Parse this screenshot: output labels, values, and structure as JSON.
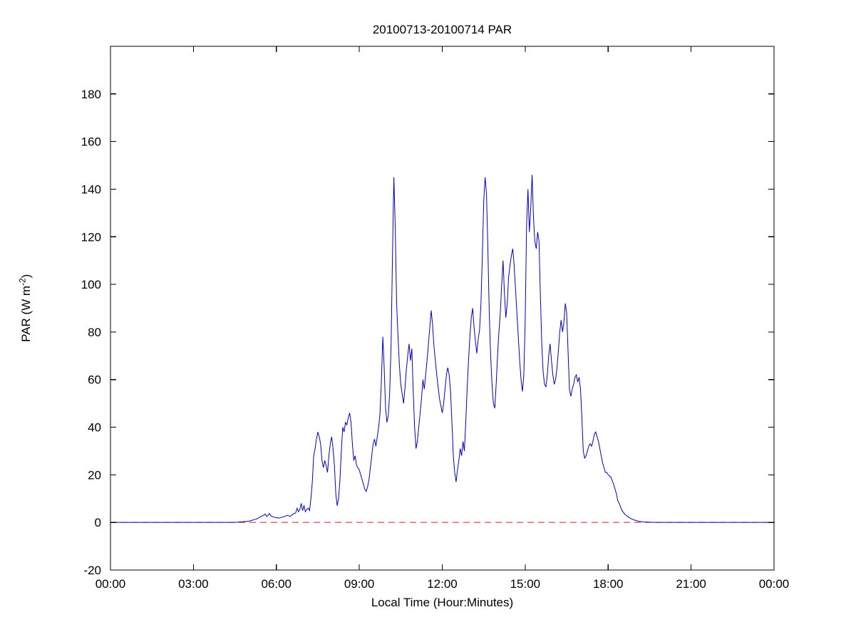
{
  "figure": {
    "background": "#ffffff",
    "axis_color": "#000000",
    "title": "20100713-20100714 PAR",
    "xlabel": "Local Time (Hour:Minutes)",
    "ylabel_base": "PAR (W m",
    "ylabel_sup": "-2",
    "ylabel_end": ")"
  },
  "chart_data": {
    "type": "line",
    "title": "20100713-20100714 PAR",
    "xlabel": "Local Time (Hour:Minutes)",
    "ylabel": "PAR (W m^-2)",
    "xlim": [
      0,
      24
    ],
    "ylim": [
      -20,
      200
    ],
    "grid": false,
    "legend": "none",
    "x_tick_values": [
      0,
      3,
      6,
      9,
      12,
      15,
      18,
      21,
      24
    ],
    "x_tick_labels": [
      "00:00",
      "03:00",
      "06:00",
      "09:00",
      "12:00",
      "15:00",
      "18:00",
      "21:00",
      "00:00"
    ],
    "y_tick_values": [
      -20,
      0,
      20,
      40,
      60,
      80,
      100,
      120,
      140,
      160,
      180
    ],
    "series": [
      {
        "name": "zero-reference-line",
        "color": "#cc2222",
        "style": "dashed",
        "points": [
          [
            0,
            0
          ],
          [
            24,
            0
          ]
        ]
      },
      {
        "name": "PAR",
        "color": "#0000cc",
        "style": "solid",
        "points": [
          [
            0,
            0
          ],
          [
            0.5,
            0
          ],
          [
            1,
            0
          ],
          [
            1.5,
            0
          ],
          [
            2,
            0
          ],
          [
            2.5,
            0
          ],
          [
            3,
            0
          ],
          [
            3.5,
            0
          ],
          [
            4,
            0
          ],
          [
            4.5,
            0
          ],
          [
            4.8,
            0.3
          ],
          [
            5.0,
            0.5
          ],
          [
            5.1,
            0.8
          ],
          [
            5.2,
            1.2
          ],
          [
            5.3,
            1.5
          ],
          [
            5.4,
            2.2
          ],
          [
            5.5,
            2.8
          ],
          [
            5.6,
            3.5
          ],
          [
            5.65,
            2.5
          ],
          [
            5.7,
            3
          ],
          [
            5.75,
            3.8
          ],
          [
            5.8,
            2.8
          ],
          [
            5.9,
            2.2
          ],
          [
            6.0,
            2
          ],
          [
            6.1,
            1.8
          ],
          [
            6.2,
            2.2
          ],
          [
            6.3,
            2.5
          ],
          [
            6.4,
            3
          ],
          [
            6.5,
            2.5
          ],
          [
            6.6,
            3.5
          ],
          [
            6.7,
            4
          ],
          [
            6.75,
            6
          ],
          [
            6.8,
            4.5
          ],
          [
            6.85,
            5.5
          ],
          [
            6.9,
            8
          ],
          [
            6.95,
            5
          ],
          [
            7.0,
            7
          ],
          [
            7.05,
            4.5
          ],
          [
            7.1,
            5.5
          ],
          [
            7.15,
            6
          ],
          [
            7.2,
            5
          ],
          [
            7.25,
            10
          ],
          [
            7.3,
            17
          ],
          [
            7.35,
            28
          ],
          [
            7.4,
            31
          ],
          [
            7.45,
            35
          ],
          [
            7.5,
            38
          ],
          [
            7.55,
            36
          ],
          [
            7.6,
            33
          ],
          [
            7.65,
            26
          ],
          [
            7.7,
            23
          ],
          [
            7.75,
            26
          ],
          [
            7.8,
            24
          ],
          [
            7.85,
            21
          ],
          [
            7.9,
            28
          ],
          [
            7.95,
            33
          ],
          [
            8.0,
            36
          ],
          [
            8.05,
            31
          ],
          [
            8.1,
            24
          ],
          [
            8.15,
            12
          ],
          [
            8.2,
            7
          ],
          [
            8.25,
            10
          ],
          [
            8.3,
            18
          ],
          [
            8.35,
            30
          ],
          [
            8.4,
            40
          ],
          [
            8.45,
            38
          ],
          [
            8.5,
            42
          ],
          [
            8.55,
            41
          ],
          [
            8.6,
            44
          ],
          [
            8.65,
            46
          ],
          [
            8.7,
            42
          ],
          [
            8.75,
            33
          ],
          [
            8.8,
            26
          ],
          [
            8.85,
            28
          ],
          [
            8.9,
            24
          ],
          [
            8.95,
            23
          ],
          [
            9.0,
            22
          ],
          [
            9.05,
            20
          ],
          [
            9.1,
            18
          ],
          [
            9.15,
            16
          ],
          [
            9.2,
            14
          ],
          [
            9.25,
            13
          ],
          [
            9.3,
            15
          ],
          [
            9.35,
            18
          ],
          [
            9.4,
            23
          ],
          [
            9.45,
            28
          ],
          [
            9.5,
            33
          ],
          [
            9.55,
            35
          ],
          [
            9.6,
            32
          ],
          [
            9.65,
            36
          ],
          [
            9.7,
            40
          ],
          [
            9.75,
            46
          ],
          [
            9.8,
            60
          ],
          [
            9.85,
            78
          ],
          [
            9.9,
            65
          ],
          [
            9.95,
            48
          ],
          [
            10.0,
            42
          ],
          [
            10.05,
            45
          ],
          [
            10.1,
            55
          ],
          [
            10.15,
            75
          ],
          [
            10.2,
            112
          ],
          [
            10.25,
            145
          ],
          [
            10.3,
            124
          ],
          [
            10.35,
            92
          ],
          [
            10.4,
            78
          ],
          [
            10.45,
            66
          ],
          [
            10.5,
            58
          ],
          [
            10.55,
            54
          ],
          [
            10.6,
            50
          ],
          [
            10.65,
            56
          ],
          [
            10.7,
            64
          ],
          [
            10.75,
            70
          ],
          [
            10.8,
            75
          ],
          [
            10.85,
            68
          ],
          [
            10.9,
            73
          ],
          [
            10.95,
            55
          ],
          [
            11.0,
            40
          ],
          [
            11.05,
            31
          ],
          [
            11.1,
            34
          ],
          [
            11.15,
            40
          ],
          [
            11.2,
            46
          ],
          [
            11.25,
            52
          ],
          [
            11.3,
            60
          ],
          [
            11.35,
            56
          ],
          [
            11.4,
            62
          ],
          [
            11.45,
            68
          ],
          [
            11.5,
            75
          ],
          [
            11.55,
            82
          ],
          [
            11.6,
            89
          ],
          [
            11.65,
            83
          ],
          [
            11.7,
            74
          ],
          [
            11.75,
            68
          ],
          [
            11.8,
            62
          ],
          [
            11.85,
            57
          ],
          [
            11.9,
            52
          ],
          [
            11.95,
            49
          ],
          [
            12.0,
            46
          ],
          [
            12.05,
            50
          ],
          [
            12.1,
            56
          ],
          [
            12.15,
            62
          ],
          [
            12.2,
            65
          ],
          [
            12.25,
            62
          ],
          [
            12.3,
            55
          ],
          [
            12.35,
            42
          ],
          [
            12.4,
            28
          ],
          [
            12.45,
            21
          ],
          [
            12.5,
            17
          ],
          [
            12.55,
            22
          ],
          [
            12.6,
            26
          ],
          [
            12.65,
            31
          ],
          [
            12.7,
            28
          ],
          [
            12.75,
            34
          ],
          [
            12.8,
            30
          ],
          [
            12.85,
            42
          ],
          [
            12.9,
            56
          ],
          [
            12.95,
            68
          ],
          [
            13.0,
            78
          ],
          [
            13.05,
            86
          ],
          [
            13.1,
            90
          ],
          [
            13.15,
            82
          ],
          [
            13.2,
            76
          ],
          [
            13.25,
            71
          ],
          [
            13.3,
            77
          ],
          [
            13.35,
            81
          ],
          [
            13.4,
            92
          ],
          [
            13.45,
            112
          ],
          [
            13.5,
            135
          ],
          [
            13.55,
            145
          ],
          [
            13.6,
            138
          ],
          [
            13.65,
            115
          ],
          [
            13.7,
            88
          ],
          [
            13.75,
            70
          ],
          [
            13.8,
            58
          ],
          [
            13.85,
            50
          ],
          [
            13.9,
            48
          ],
          [
            13.95,
            58
          ],
          [
            14.0,
            70
          ],
          [
            14.05,
            80
          ],
          [
            14.1,
            88
          ],
          [
            14.15,
            100
          ],
          [
            14.2,
            110
          ],
          [
            14.25,
            96
          ],
          [
            14.3,
            86
          ],
          [
            14.35,
            92
          ],
          [
            14.4,
            103
          ],
          [
            14.45,
            108
          ],
          [
            14.5,
            112
          ],
          [
            14.55,
            115
          ],
          [
            14.6,
            108
          ],
          [
            14.65,
            98
          ],
          [
            14.7,
            88
          ],
          [
            14.75,
            78
          ],
          [
            14.8,
            68
          ],
          [
            14.85,
            60
          ],
          [
            14.9,
            55
          ],
          [
            14.95,
            62
          ],
          [
            15.0,
            85
          ],
          [
            15.05,
            125
          ],
          [
            15.1,
            140
          ],
          [
            15.15,
            122
          ],
          [
            15.2,
            132
          ],
          [
            15.25,
            146
          ],
          [
            15.3,
            128
          ],
          [
            15.35,
            118
          ],
          [
            15.4,
            115
          ],
          [
            15.45,
            122
          ],
          [
            15.5,
            118
          ],
          [
            15.55,
            95
          ],
          [
            15.6,
            75
          ],
          [
            15.65,
            63
          ],
          [
            15.7,
            58
          ],
          [
            15.75,
            57
          ],
          [
            15.8,
            62
          ],
          [
            15.85,
            70
          ],
          [
            15.9,
            75
          ],
          [
            15.95,
            68
          ],
          [
            16.0,
            62
          ],
          [
            16.05,
            58
          ],
          [
            16.1,
            60
          ],
          [
            16.15,
            65
          ],
          [
            16.2,
            72
          ],
          [
            16.25,
            80
          ],
          [
            16.3,
            85
          ],
          [
            16.35,
            80
          ],
          [
            16.4,
            84
          ],
          [
            16.45,
            92
          ],
          [
            16.5,
            88
          ],
          [
            16.55,
            72
          ],
          [
            16.6,
            56
          ],
          [
            16.65,
            53
          ],
          [
            16.7,
            56
          ],
          [
            16.75,
            58
          ],
          [
            16.8,
            61
          ],
          [
            16.85,
            62
          ],
          [
            16.9,
            59
          ],
          [
            16.95,
            61
          ],
          [
            17.0,
            56
          ],
          [
            17.05,
            44
          ],
          [
            17.1,
            30
          ],
          [
            17.15,
            27
          ],
          [
            17.2,
            28
          ],
          [
            17.25,
            30
          ],
          [
            17.3,
            32
          ],
          [
            17.35,
            33
          ],
          [
            17.4,
            32
          ],
          [
            17.45,
            34
          ],
          [
            17.5,
            37
          ],
          [
            17.55,
            38
          ],
          [
            17.6,
            36
          ],
          [
            17.65,
            34
          ],
          [
            17.7,
            31
          ],
          [
            17.75,
            28
          ],
          [
            17.8,
            25
          ],
          [
            17.85,
            23
          ],
          [
            17.9,
            21
          ],
          [
            17.95,
            21
          ],
          [
            18.0,
            20
          ],
          [
            18.1,
            19
          ],
          [
            18.2,
            16
          ],
          [
            18.3,
            12
          ],
          [
            18.35,
            9
          ],
          [
            18.4,
            8
          ],
          [
            18.5,
            5
          ],
          [
            18.6,
            3.5
          ],
          [
            18.7,
            2.5
          ],
          [
            18.8,
            1.8
          ],
          [
            18.9,
            1.2
          ],
          [
            19.0,
            0.8
          ],
          [
            19.1,
            0.5
          ],
          [
            19.2,
            0.3
          ],
          [
            19.3,
            0.2
          ],
          [
            19.5,
            0.1
          ],
          [
            19.7,
            0
          ],
          [
            20,
            0
          ],
          [
            20.5,
            0
          ],
          [
            21,
            0
          ],
          [
            21.5,
            0
          ],
          [
            22,
            0
          ],
          [
            22.5,
            0
          ],
          [
            23,
            0
          ],
          [
            23.5,
            0
          ],
          [
            24,
            0
          ]
        ]
      }
    ]
  }
}
